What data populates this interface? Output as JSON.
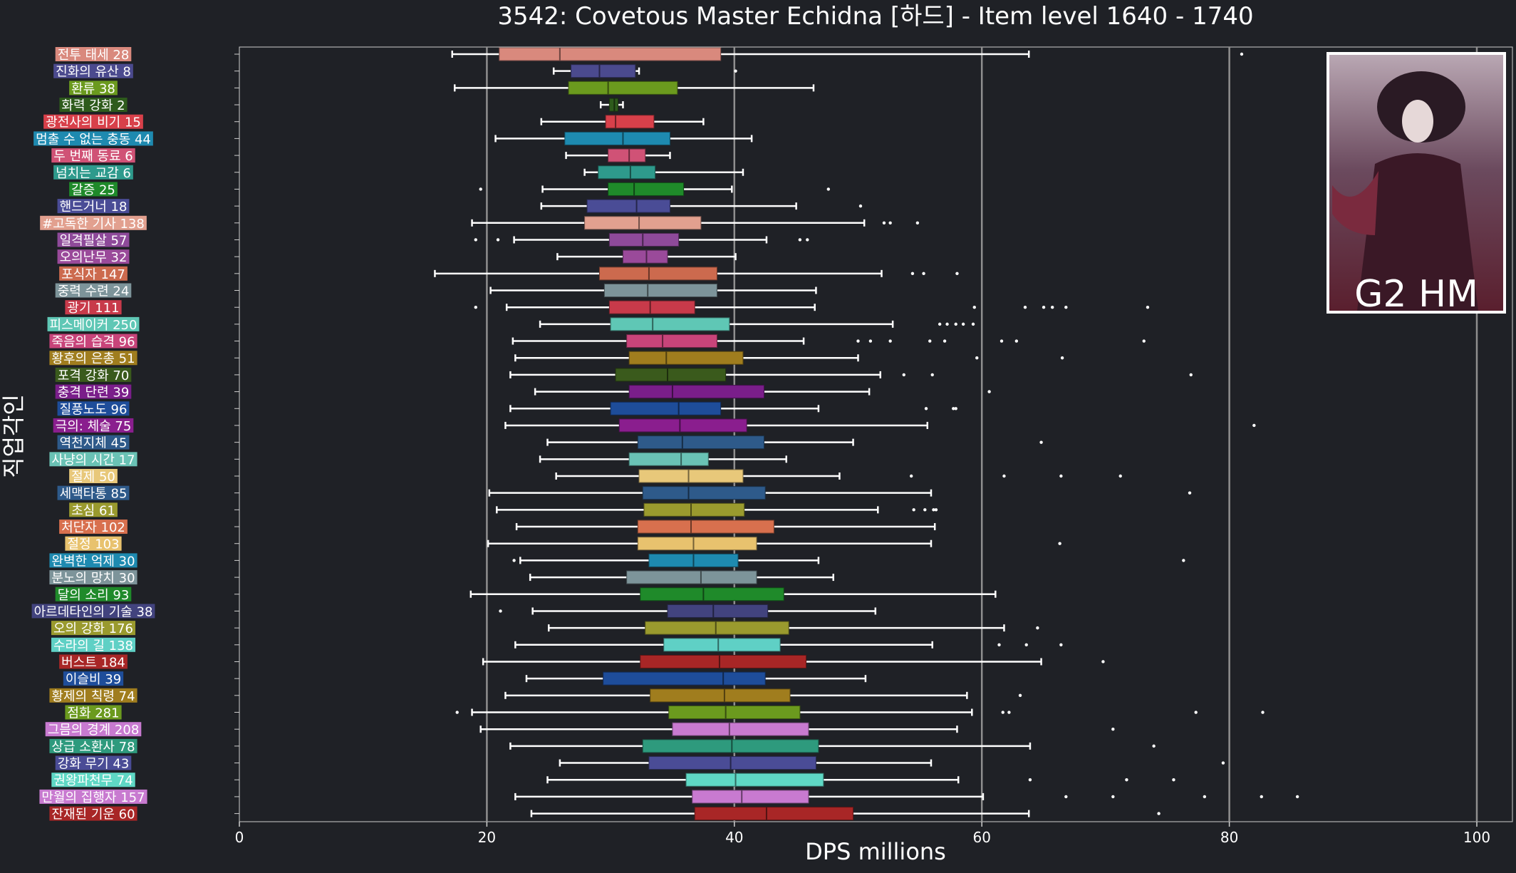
{
  "chart_data": {
    "type": "box",
    "orientation": "horizontal",
    "title": "3542: Covetous Master Echidna [하드] - Item level 1640 - 1740",
    "xlabel": "DPS millions",
    "ylabel": "직업각인",
    "xlim": [
      0,
      103
    ],
    "xticks": [
      0,
      20,
      40,
      60,
      80,
      100
    ],
    "grid": "vertical",
    "background": "#1f2126",
    "badge": {
      "text": "G2 HM"
    },
    "series": [
      {
        "label": "전투 태세 28",
        "color": "#d9897d",
        "whislo": 17.2,
        "q1": 21.0,
        "med": 25.9,
        "q3": 38.9,
        "whishi": 63.8,
        "fliers": [
          81.0
        ]
      },
      {
        "label": "진화의 유산 8",
        "color": "#4b4a8e",
        "whislo": 25.4,
        "q1": 26.8,
        "med": 29.1,
        "q3": 32.0,
        "whishi": 32.3,
        "fliers": [
          40.1
        ]
      },
      {
        "label": "환류 38",
        "color": "#6b9a1e",
        "whislo": 17.4,
        "q1": 26.6,
        "med": 29.8,
        "q3": 35.4,
        "whishi": 46.4,
        "fliers": []
      },
      {
        "label": "화력 강화 2",
        "color": "#2e5b1c",
        "whislo": 29.2,
        "q1": 29.9,
        "med": 30.3,
        "q3": 30.6,
        "whishi": 31.0,
        "fliers": []
      },
      {
        "label": "광전사의 비기 15",
        "color": "#d8404a",
        "whislo": 24.4,
        "q1": 29.6,
        "med": 30.4,
        "q3": 33.5,
        "whishi": 37.5,
        "fliers": []
      },
      {
        "label": "멈출 수 없는 충동 44",
        "color": "#1e8ab0",
        "whislo": 20.7,
        "q1": 26.3,
        "med": 31.0,
        "q3": 34.8,
        "whishi": 41.4,
        "fliers": []
      },
      {
        "label": "두 번째 동료 6",
        "color": "#d05276",
        "whislo": 26.4,
        "q1": 29.8,
        "med": 31.5,
        "q3": 32.8,
        "whishi": 34.8,
        "fliers": []
      },
      {
        "label": "넘치는 교감 6",
        "color": "#2e9a8c",
        "whislo": 27.9,
        "q1": 29.0,
        "med": 31.6,
        "q3": 33.6,
        "whishi": 40.7,
        "fliers": []
      },
      {
        "label": "갈증 25",
        "color": "#1f8a2a",
        "whislo": 24.5,
        "q1": 29.8,
        "med": 31.9,
        "q3": 35.9,
        "whishi": 39.8,
        "fliers": [
          19.5,
          47.6
        ]
      },
      {
        "label": "핸드거너 18",
        "color": "#4a4c96",
        "whislo": 24.4,
        "q1": 28.1,
        "med": 32.1,
        "q3": 34.8,
        "whishi": 45.0,
        "fliers": [
          50.2
        ]
      },
      {
        "label": "#고독한 기사 138",
        "color": "#e2a08f",
        "whislo": 18.8,
        "q1": 27.9,
        "med": 32.3,
        "q3": 37.3,
        "whishi": 50.5,
        "fliers": [
          52.1,
          52.6,
          54.8
        ]
      },
      {
        "label": "일격필살 57",
        "color": "#8e4a9a",
        "whislo": 22.2,
        "q1": 29.9,
        "med": 32.6,
        "q3": 35.5,
        "whishi": 42.6,
        "fliers": [
          19.1,
          20.9,
          45.3,
          45.9
        ]
      },
      {
        "label": "오의난무 32",
        "color": "#9a4a9a",
        "whislo": 25.7,
        "q1": 31.0,
        "med": 32.9,
        "q3": 34.6,
        "whishi": 40.1,
        "fliers": []
      },
      {
        "label": "포식자 147",
        "color": "#cc6a4e",
        "whislo": 15.8,
        "q1": 29.1,
        "med": 33.1,
        "q3": 38.6,
        "whishi": 51.9,
        "fliers": [
          54.4,
          55.3,
          58.0
        ]
      },
      {
        "label": "중력 수련 24",
        "color": "#7d949a",
        "whislo": 20.3,
        "q1": 29.5,
        "med": 33.0,
        "q3": 38.6,
        "whishi": 46.6,
        "fliers": []
      },
      {
        "label": "광기 111",
        "color": "#c83a4a",
        "whislo": 21.6,
        "q1": 29.9,
        "med": 33.2,
        "q3": 36.8,
        "whishi": 46.5,
        "fliers": [
          19.1,
          59.4,
          63.5,
          65.0,
          65.7,
          66.8,
          73.4
        ]
      },
      {
        "label": "피스메이커 250",
        "color": "#5fc7b5",
        "whislo": 24.3,
        "q1": 30.0,
        "med": 33.4,
        "q3": 39.6,
        "whishi": 52.8,
        "fliers": [
          56.6,
          57.2,
          57.9,
          58.5,
          59.3
        ]
      },
      {
        "label": "죽음의 습격 96",
        "color": "#c8447a",
        "whislo": 22.1,
        "q1": 31.3,
        "med": 34.2,
        "q3": 38.6,
        "whishi": 45.6,
        "fliers": [
          50.0,
          51.0,
          52.6,
          55.8,
          57.0,
          61.6,
          62.8,
          73.1
        ]
      },
      {
        "label": "황후의 은총 51",
        "color": "#a07d1e",
        "whislo": 22.3,
        "q1": 31.5,
        "med": 34.5,
        "q3": 40.7,
        "whishi": 50.0,
        "fliers": [
          59.6,
          66.5
        ]
      },
      {
        "label": "포격 강화 70",
        "color": "#3a5a1c",
        "whislo": 21.9,
        "q1": 30.4,
        "med": 34.6,
        "q3": 39.3,
        "whishi": 51.8,
        "fliers": [
          53.7,
          56.0,
          76.9
        ]
      },
      {
        "label": "충격 단련 39",
        "color": "#7a1e8a",
        "whislo": 23.9,
        "q1": 31.5,
        "med": 35.0,
        "q3": 42.4,
        "whishi": 50.9,
        "fliers": [
          60.6
        ]
      },
      {
        "label": "질풍노도 96",
        "color": "#1e4d9a",
        "whislo": 21.9,
        "q1": 30.0,
        "med": 35.5,
        "q3": 38.9,
        "whishi": 46.8,
        "fliers": [
          55.5,
          57.7,
          57.9
        ]
      },
      {
        "label": "극의: 체술 75",
        "color": "#8a1e8e",
        "whislo": 21.5,
        "q1": 30.7,
        "med": 35.6,
        "q3": 41.0,
        "whishi": 55.6,
        "fliers": [
          82.0
        ]
      },
      {
        "label": "역천지체 45",
        "color": "#2e5a8a",
        "whislo": 24.9,
        "q1": 32.2,
        "med": 35.8,
        "q3": 42.4,
        "whishi": 49.6,
        "fliers": [
          64.8
        ]
      },
      {
        "label": "사냥의 시간 17",
        "color": "#6ac2b5",
        "whislo": 24.3,
        "q1": 31.5,
        "med": 35.7,
        "q3": 37.9,
        "whishi": 44.2,
        "fliers": []
      },
      {
        "label": "절제 50",
        "color": "#e8c87a",
        "whislo": 25.6,
        "q1": 32.3,
        "med": 36.3,
        "q3": 40.7,
        "whishi": 48.5,
        "fliers": [
          54.3,
          61.8,
          66.4,
          71.2
        ]
      },
      {
        "label": "세맥타통 85",
        "color": "#2e5a8a",
        "whislo": 20.2,
        "q1": 32.6,
        "med": 36.3,
        "q3": 42.5,
        "whishi": 55.9,
        "fliers": [
          76.8
        ]
      },
      {
        "label": "초심 61",
        "color": "#9a9a2e",
        "whislo": 20.8,
        "q1": 32.7,
        "med": 36.5,
        "q3": 40.8,
        "whishi": 51.6,
        "fliers": [
          54.5,
          55.4,
          56.1,
          56.3
        ]
      },
      {
        "label": "처단자 102",
        "color": "#d8704e",
        "whislo": 22.4,
        "q1": 32.2,
        "med": 36.5,
        "q3": 43.2,
        "whishi": 56.2,
        "fliers": []
      },
      {
        "label": "절정 103",
        "color": "#e8c26e",
        "whislo": 20.1,
        "q1": 32.2,
        "med": 36.7,
        "q3": 41.8,
        "whishi": 55.9,
        "fliers": [
          66.3
        ]
      },
      {
        "label": "완벽한 억제 30",
        "color": "#1e8ab0",
        "whislo": 22.7,
        "q1": 33.1,
        "med": 36.7,
        "q3": 40.3,
        "whishi": 46.8,
        "fliers": [
          22.2,
          76.3
        ]
      },
      {
        "label": "분노의 망치 30",
        "color": "#7d949a",
        "whislo": 23.5,
        "q1": 31.3,
        "med": 37.3,
        "q3": 41.8,
        "whishi": 48.0,
        "fliers": []
      },
      {
        "label": "달의 소리 93",
        "color": "#1f8a2a",
        "whislo": 18.7,
        "q1": 32.4,
        "med": 37.5,
        "q3": 44.0,
        "whishi": 61.1,
        "fliers": []
      },
      {
        "label": "아르데타인의 기술 38",
        "color": "#42437e",
        "whislo": 23.7,
        "q1": 34.6,
        "med": 38.3,
        "q3": 42.7,
        "whishi": 51.4,
        "fliers": [
          21.1
        ]
      },
      {
        "label": "오의 강화 176",
        "color": "#9a9a2e",
        "whislo": 25.0,
        "q1": 32.8,
        "med": 38.5,
        "q3": 44.4,
        "whishi": 61.8,
        "fliers": [
          64.5
        ]
      },
      {
        "label": "수라의 길 138",
        "color": "#5fd0c5",
        "whislo": 22.3,
        "q1": 34.3,
        "med": 38.7,
        "q3": 43.7,
        "whishi": 56.0,
        "fliers": [
          61.4,
          63.6,
          66.4
        ]
      },
      {
        "label": "버스트 184",
        "color": "#a82626",
        "whislo": 19.7,
        "q1": 32.4,
        "med": 38.8,
        "q3": 45.8,
        "whishi": 64.8,
        "fliers": [
          69.8
        ]
      },
      {
        "label": "이슬비 39",
        "color": "#1e4d9a",
        "whislo": 23.2,
        "q1": 29.4,
        "med": 39.1,
        "q3": 42.5,
        "whishi": 50.6,
        "fliers": []
      },
      {
        "label": "황제의 칙령 74",
        "color": "#a07d1e",
        "whislo": 21.5,
        "q1": 33.2,
        "med": 39.2,
        "q3": 44.5,
        "whishi": 58.8,
        "fliers": [
          63.1
        ]
      },
      {
        "label": "점화 281",
        "color": "#6b9a1e",
        "whislo": 18.8,
        "q1": 34.7,
        "med": 39.3,
        "q3": 45.3,
        "whishi": 59.2,
        "fliers": [
          17.6,
          61.7,
          62.2,
          77.3,
          82.7
        ]
      },
      {
        "label": "그믐의 경계 208",
        "color": "#c87ad0",
        "whislo": 19.5,
        "q1": 35.0,
        "med": 39.6,
        "q3": 46.0,
        "whishi": 58.0,
        "fliers": [
          70.6
        ]
      },
      {
        "label": "상급 소환사 78",
        "color": "#2e9a7d",
        "whislo": 21.9,
        "q1": 32.6,
        "med": 39.8,
        "q3": 46.8,
        "whishi": 63.9,
        "fliers": [
          73.9
        ]
      },
      {
        "label": "강화 무기 43",
        "color": "#4a4c96",
        "whislo": 25.9,
        "q1": 33.1,
        "med": 39.7,
        "q3": 46.6,
        "whishi": 55.9,
        "fliers": [
          79.5
        ]
      },
      {
        "label": "권왕파천무 74",
        "color": "#5fd8c5",
        "whislo": 24.9,
        "q1": 36.1,
        "med": 40.1,
        "q3": 47.2,
        "whishi": 58.1,
        "fliers": [
          63.9,
          71.7,
          75.5
        ]
      },
      {
        "label": "만월의 집행자 157",
        "color": "#c87ad0",
        "whislo": 22.3,
        "q1": 36.6,
        "med": 40.6,
        "q3": 46.0,
        "whishi": 60.1,
        "fliers": [
          66.8,
          70.6,
          78.0,
          82.6,
          85.5
        ]
      },
      {
        "label": "잔재된 기운 60",
        "color": "#a82626",
        "whislo": 23.6,
        "q1": 36.8,
        "med": 42.6,
        "q3": 49.6,
        "whishi": 63.8,
        "fliers": [
          74.3
        ]
      }
    ]
  }
}
